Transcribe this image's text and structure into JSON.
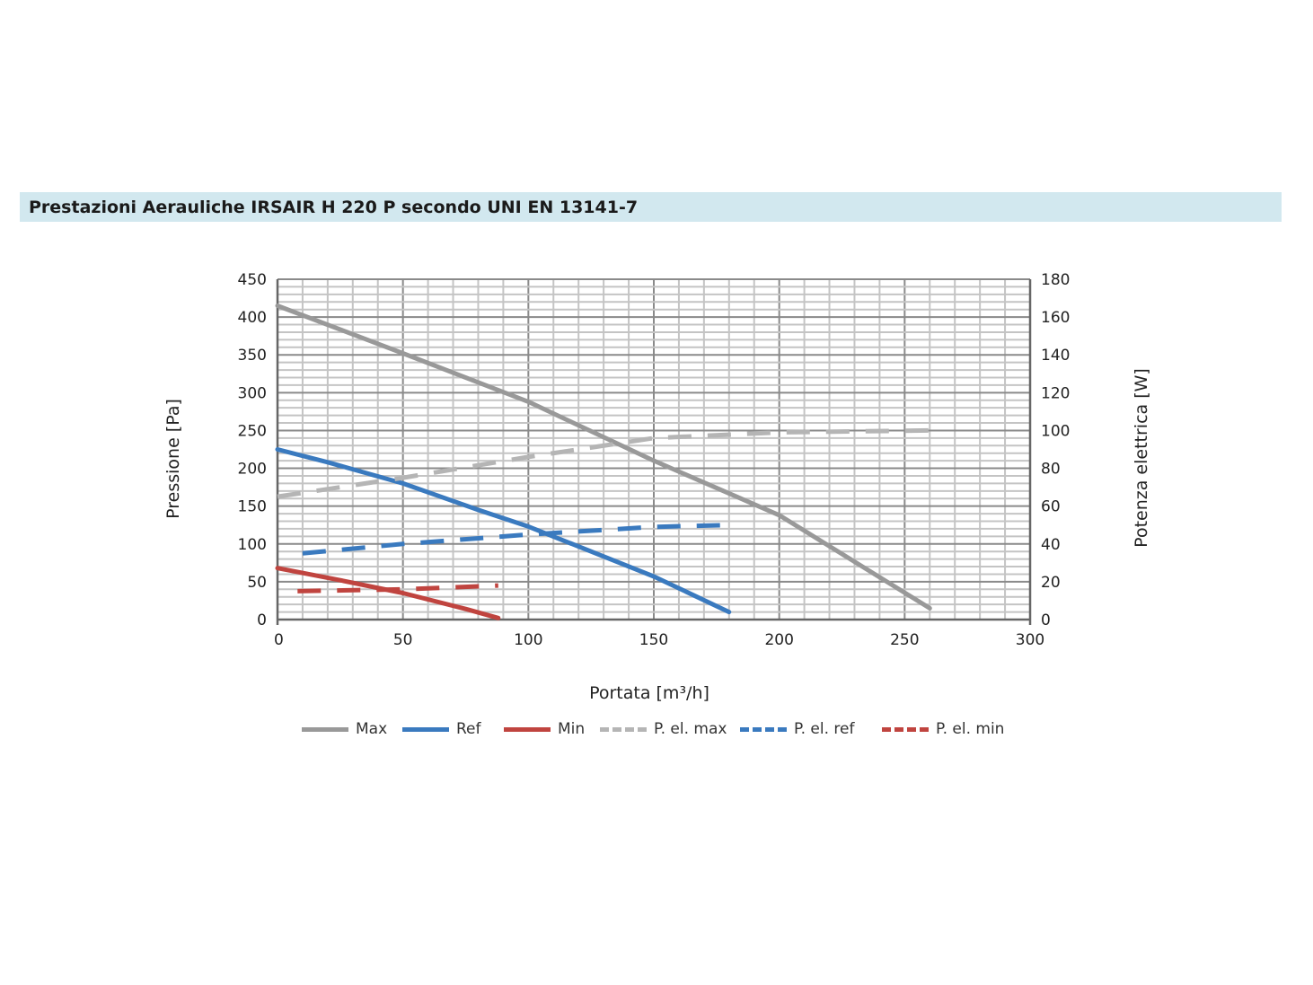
{
  "header": {
    "title": "Prestazioni Aerauliche IRSAIR H 220 P secondo UNI EN 13141-7"
  },
  "chart_data": {
    "type": "line",
    "title": "Prestazioni Aerauliche IRSAIR H 220 P secondo UNI EN 13141-7",
    "xlabel": "Portata [m³/h]",
    "ylabel": "Pressione [Pa]",
    "y2label": "Potenza elettrica [W]",
    "xlim": [
      0,
      300
    ],
    "ylim": [
      0,
      450
    ],
    "y2lim": [
      0,
      180
    ],
    "xticks": [
      "0",
      "50",
      "100",
      "150",
      "200",
      "250",
      "300"
    ],
    "yticks": [
      "0",
      "50",
      "100",
      "150",
      "200",
      "250",
      "300",
      "350",
      "400",
      "450"
    ],
    "y2ticks": [
      "0",
      "20",
      "40",
      "60",
      "80",
      "100",
      "120",
      "140",
      "160",
      "180"
    ],
    "grid": true,
    "legend_position": "bottom",
    "series": [
      {
        "name": "Max",
        "axis": "left",
        "style": "solid",
        "color": "#999999",
        "x": [
          0,
          50,
          100,
          150,
          200,
          260
        ],
        "y": [
          415,
          352,
          288,
          210,
          138,
          15
        ]
      },
      {
        "name": "Ref",
        "axis": "left",
        "style": "solid",
        "color": "#3a7abf",
        "x": [
          0,
          20,
          50,
          80,
          100,
          150,
          180
        ],
        "y": [
          225,
          208,
          180,
          145,
          123,
          57,
          10
        ]
      },
      {
        "name": "Min",
        "axis": "left",
        "style": "solid",
        "color": "#c0443f",
        "x": [
          0,
          25,
          50,
          75,
          88
        ],
        "y": [
          68,
          52,
          35,
          14,
          2
        ]
      },
      {
        "name": "P. el. max",
        "axis": "right",
        "style": "dashed",
        "color": "#b5b5b5",
        "x": [
          0,
          50,
          100,
          150,
          200,
          260
        ],
        "y": [
          65,
          75,
          86,
          96,
          99,
          100
        ]
      },
      {
        "name": "P. el. ref",
        "axis": "right",
        "style": "dashed",
        "color": "#3a7abf",
        "x": [
          10,
          50,
          100,
          150,
          180
        ],
        "y": [
          35,
          40,
          45,
          49,
          50
        ]
      },
      {
        "name": "P. el. min",
        "axis": "right",
        "style": "dashed",
        "color": "#c0443f",
        "x": [
          8,
          50,
          88
        ],
        "y": [
          15,
          16,
          18
        ]
      }
    ]
  }
}
